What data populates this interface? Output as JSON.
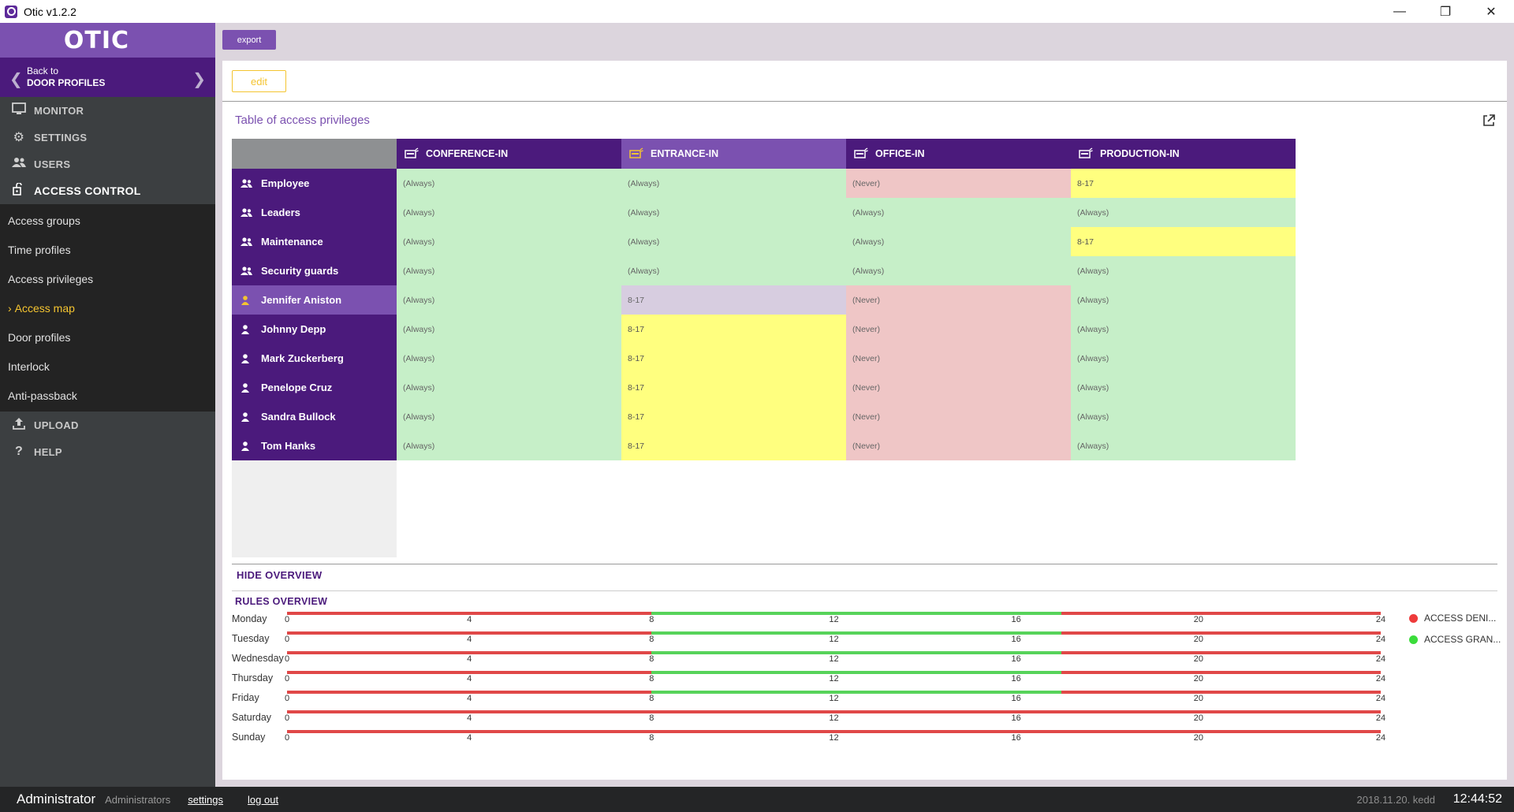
{
  "window": {
    "title": "Otic v1.2.2"
  },
  "sidebar": {
    "logo": "OTIC",
    "back": {
      "line1": "Back to",
      "line2": "DOOR PROFILES"
    },
    "nav": [
      {
        "key": "monitor",
        "label": "MONITOR",
        "icon": "monitor-icon"
      },
      {
        "key": "settings",
        "label": "SETTINGS",
        "icon": "gear-icon"
      },
      {
        "key": "users",
        "label": "USERS",
        "icon": "users-icon"
      },
      {
        "key": "access-control",
        "label": "ACCESS CONTROL",
        "icon": "access-control-icon"
      }
    ],
    "submenu": [
      "Access groups",
      "Time profiles",
      "Access privileges",
      "Access map",
      "Door profiles",
      "Interlock",
      "Anti-passback"
    ],
    "active_sub": "Access map",
    "nav_bottom": [
      {
        "key": "upload",
        "label": "UPLOAD",
        "icon": "upload-icon"
      },
      {
        "key": "help",
        "label": "HELP",
        "icon": "help-icon"
      }
    ]
  },
  "toolbar": {
    "export_label": "export",
    "edit_label": "edit"
  },
  "table": {
    "title": "Table of access privileges",
    "columns": [
      "CONFERENCE-IN",
      "ENTRANCE-IN",
      "OFFICE-IN",
      "PRODUCTION-IN"
    ],
    "highlight_column": 1,
    "rows": [
      {
        "name": "Employee",
        "type": "group",
        "cells": [
          "(Always)",
          "(Always)",
          "(Never)",
          "8-17"
        ]
      },
      {
        "name": "Leaders",
        "type": "group",
        "cells": [
          "(Always)",
          "(Always)",
          "(Always)",
          "(Always)"
        ]
      },
      {
        "name": "Maintenance",
        "type": "group",
        "cells": [
          "(Always)",
          "(Always)",
          "(Always)",
          "8-17"
        ]
      },
      {
        "name": "Security guards",
        "type": "group",
        "cells": [
          "(Always)",
          "(Always)",
          "(Always)",
          "(Always)"
        ]
      },
      {
        "name": "Jennifer Aniston",
        "type": "user",
        "cells": [
          "(Always)",
          "8-17",
          "(Never)",
          "(Always)"
        ]
      },
      {
        "name": "Johnny Depp",
        "type": "user",
        "cells": [
          "(Always)",
          "8-17",
          "(Never)",
          "(Always)"
        ]
      },
      {
        "name": "Mark Zuckerberg",
        "type": "user",
        "cells": [
          "(Always)",
          "8-17",
          "(Never)",
          "(Always)"
        ]
      },
      {
        "name": "Penelope Cruz",
        "type": "user",
        "cells": [
          "(Always)",
          "8-17",
          "(Never)",
          "(Always)"
        ]
      },
      {
        "name": "Sandra Bullock",
        "type": "user",
        "cells": [
          "(Always)",
          "8-17",
          "(Never)",
          "(Always)"
        ]
      },
      {
        "name": "Tom Hanks",
        "type": "user",
        "cells": [
          "(Always)",
          "8-17",
          "(Never)",
          "(Always)"
        ]
      }
    ],
    "highlight_row": 4,
    "cell_colors": {
      "always": "#c6efc8",
      "never": "#efc6c6",
      "range": "#ffff7f",
      "selected_range": "#d7cde0"
    }
  },
  "overview": {
    "hide_label": "HIDE OVERVIEW",
    "rules_label": "RULES OVERVIEW",
    "ticks": [
      "0",
      "4",
      "8",
      "12",
      "16",
      "20",
      "24"
    ],
    "days": [
      {
        "name": "Monday",
        "granted": [
          8,
          17
        ]
      },
      {
        "name": "Tuesday",
        "granted": [
          8,
          17
        ]
      },
      {
        "name": "Wednesday",
        "granted": [
          8,
          17
        ]
      },
      {
        "name": "Thursday",
        "granted": [
          8,
          17
        ]
      },
      {
        "name": "Friday",
        "granted": [
          8,
          17
        ]
      },
      {
        "name": "Saturday",
        "granted": null
      },
      {
        "name": "Sunday",
        "granted": null
      }
    ],
    "legend": [
      {
        "label": "ACCESS DENI...",
        "color": "#ee3b3b"
      },
      {
        "label": "ACCESS GRAN...",
        "color": "#3bdc3b"
      }
    ]
  },
  "footer": {
    "user": "Administrator",
    "group": "Administrators",
    "settings_link": "settings",
    "logout_link": "log out",
    "date": "2018.11.20. kedd",
    "time": "12:44:52"
  }
}
